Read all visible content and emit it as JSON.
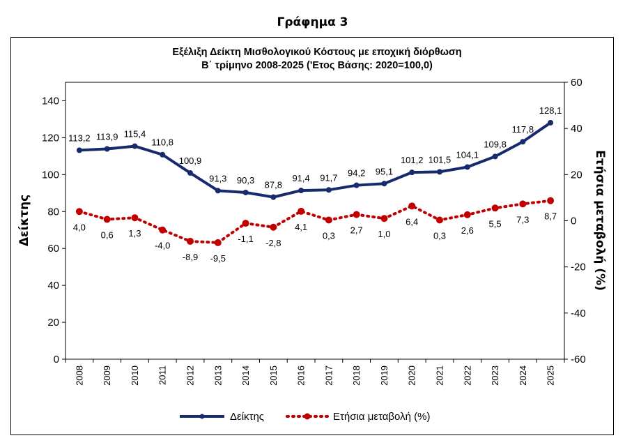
{
  "page": {
    "heading": "Γράφημα 3"
  },
  "chart_data": {
    "type": "line",
    "title": "Εξέλιξη Δείκτη Μισθολογικού  Κόστους με εποχική διόρθωση",
    "subtitle": "Β΄ τρίμηνο 2008-2025 ('Ετος Βάσης: 2020=100,0)",
    "ylabel": "Δείκτης",
    "y2label": "Ετήσια μεταβολή (%)",
    "ylim": [
      0,
      150
    ],
    "y2lim": [
      -60,
      60
    ],
    "yticks": [
      "0",
      "20",
      "40",
      "60",
      "80",
      "100",
      "120",
      "140"
    ],
    "y2ticks": [
      "-60",
      "-40",
      "-20",
      "0",
      "20",
      "40",
      "60"
    ],
    "categories": [
      "2008",
      "2009",
      "2010",
      "2011",
      "2012",
      "2013",
      "2014",
      "2015",
      "2016",
      "2017",
      "2018",
      "2019",
      "2020",
      "2021",
      "2022",
      "2023",
      "2024",
      "2025"
    ],
    "series": [
      {
        "name": "Δείκτης",
        "axis": "left",
        "color": "#172a6b",
        "values": [
          113.2,
          113.9,
          115.4,
          110.8,
          100.9,
          91.3,
          90.3,
          87.8,
          91.4,
          91.7,
          94.2,
          95.1,
          101.2,
          101.5,
          104.1,
          109.8,
          117.8,
          128.1
        ],
        "labels": [
          "113,2",
          "113,9",
          "115,4",
          "110,8",
          "100,9",
          "91,3",
          "90,3",
          "87,8",
          "91,4",
          "91,7",
          "94,2",
          "95,1",
          "101,2",
          "101,5",
          "104,1",
          "109,8",
          "117,8",
          "128,1"
        ]
      },
      {
        "name": "Ετήσια μεταβολή (%)",
        "axis": "right",
        "color": "#c00000",
        "values": [
          4.0,
          0.6,
          1.3,
          -4.0,
          -8.9,
          -9.5,
          -1.1,
          -2.8,
          4.1,
          0.3,
          2.7,
          1.0,
          6.4,
          0.3,
          2.6,
          5.5,
          7.3,
          8.7
        ],
        "labels": [
          "4,0",
          "0,6",
          "1,3",
          "-4,0",
          "-8,9",
          "-9,5",
          "-1,1",
          "-2,8",
          "4,1",
          "0,3",
          "2,7",
          "1,0",
          "6,4",
          "0,3",
          "2,6",
          "5,5",
          "7,3",
          "8,7"
        ]
      }
    ],
    "legend": {
      "position": "bottom",
      "items": [
        "Δείκτης",
        "Ετήσια μεταβολή (%)"
      ]
    },
    "grid": false
  }
}
